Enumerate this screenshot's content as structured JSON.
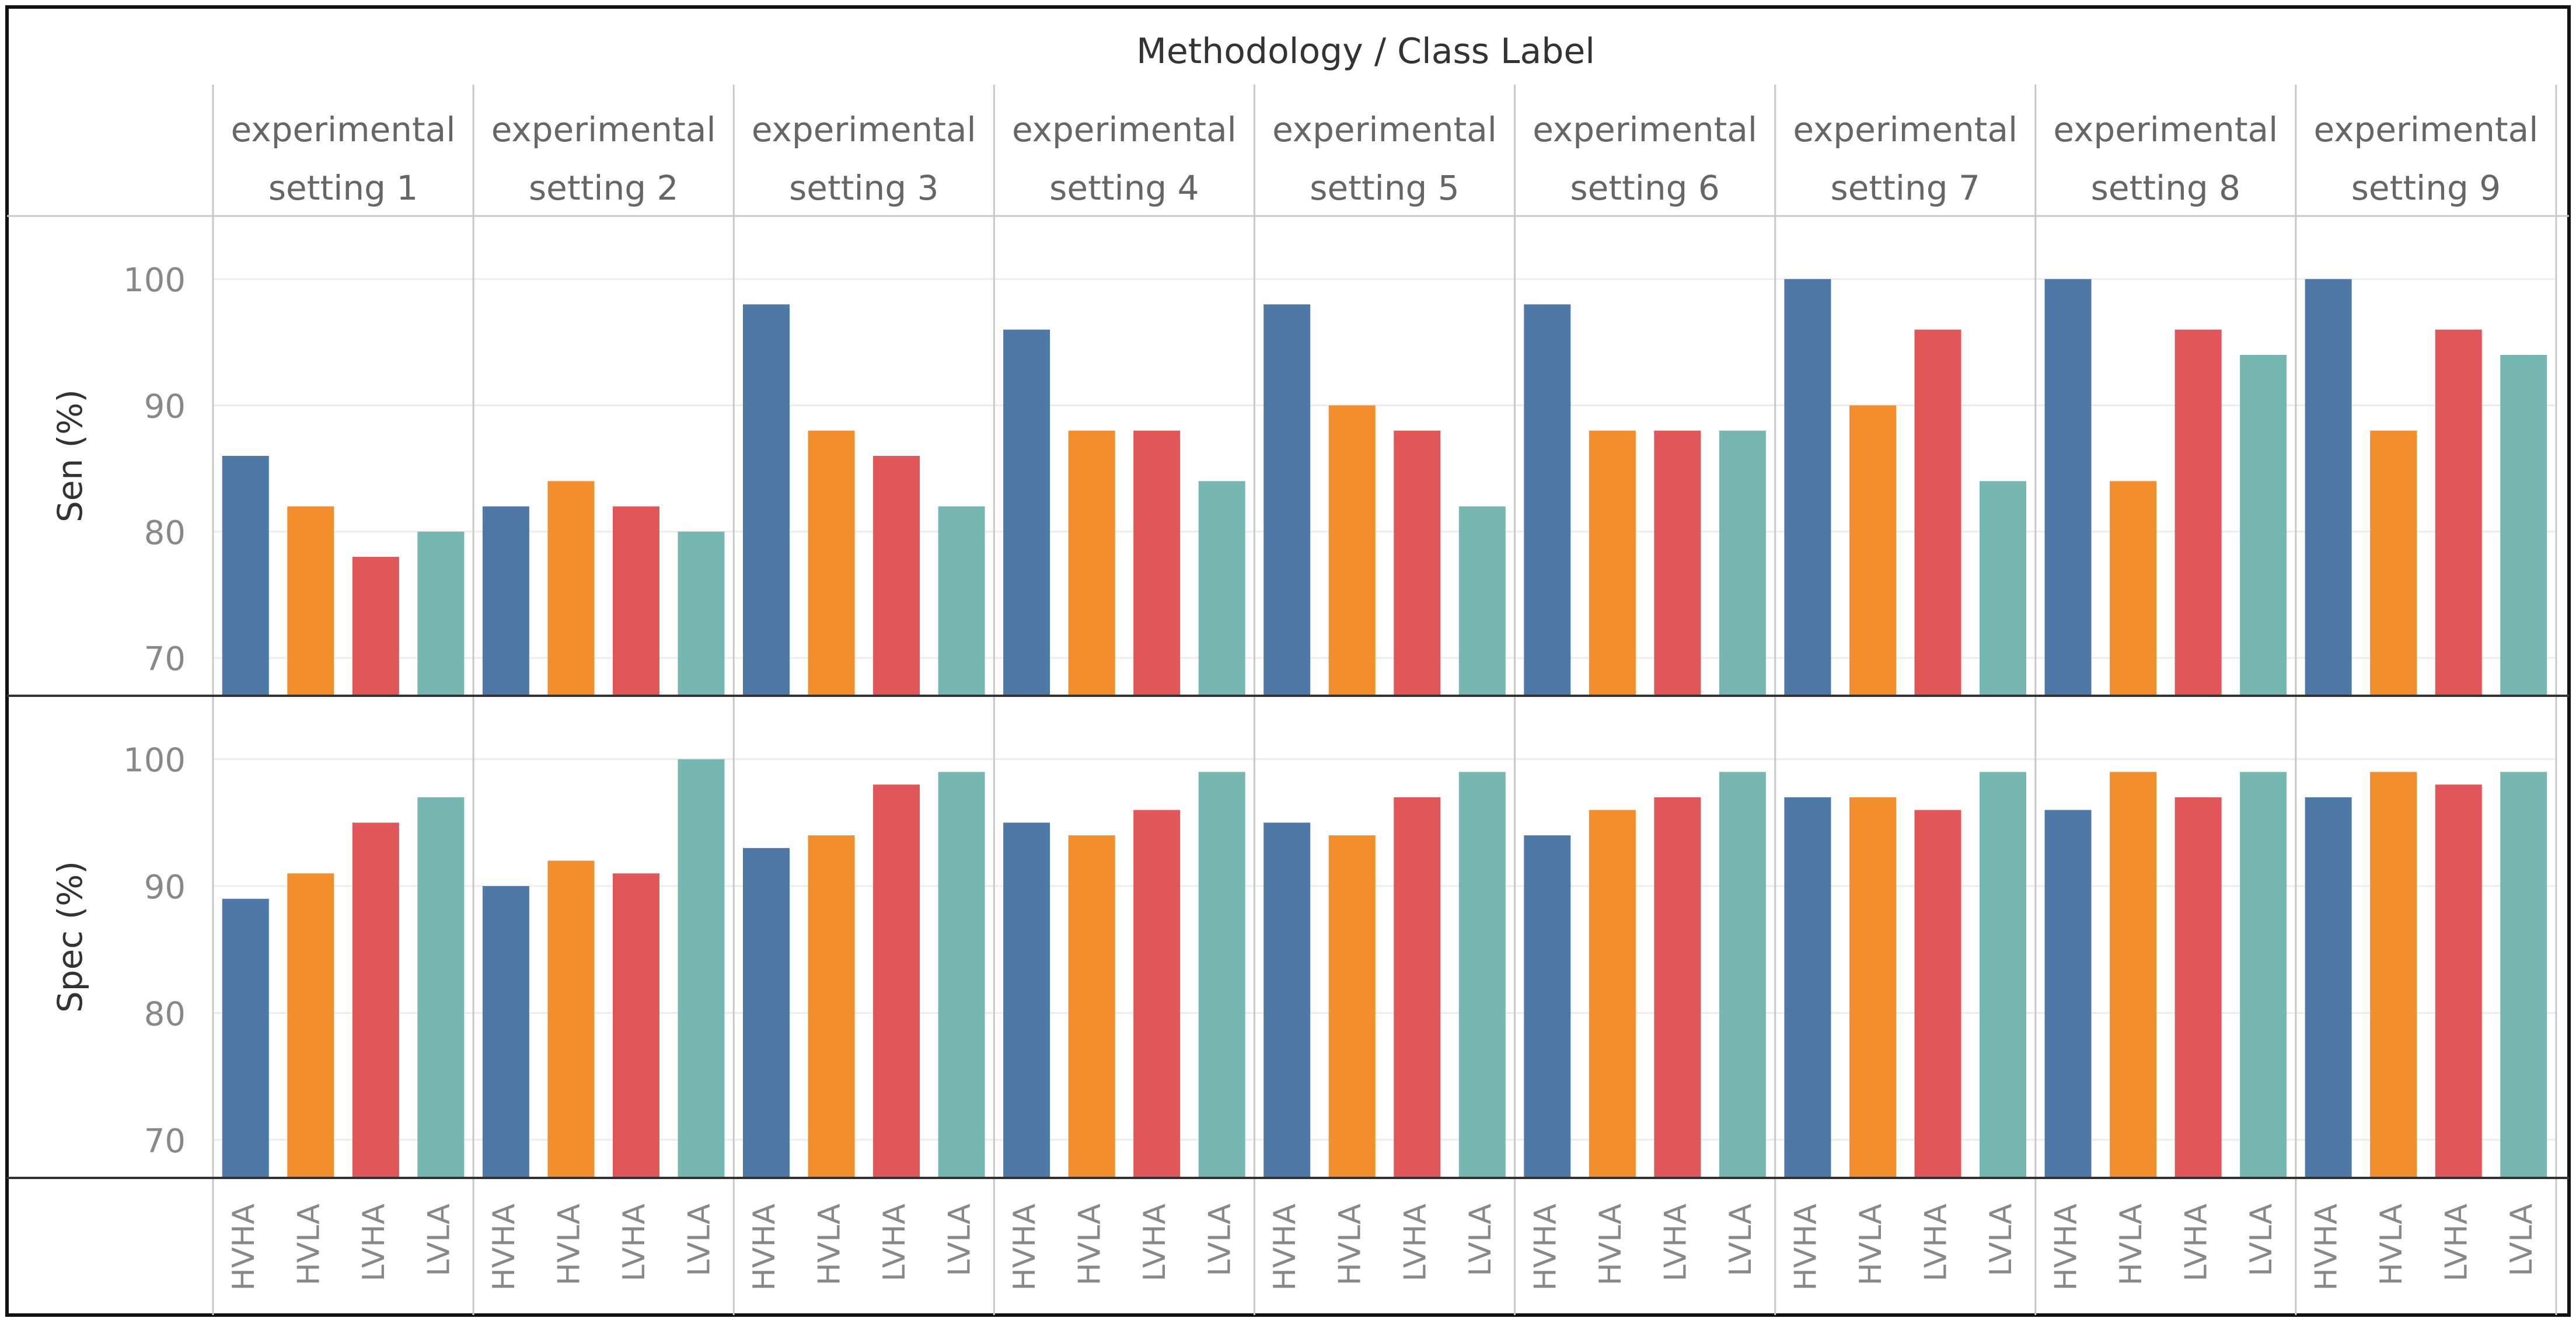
{
  "chart_data": {
    "type": "bar",
    "title": "Methodology / Class Label",
    "facets": [
      "experimental setting 1",
      "experimental setting 2",
      "experimental setting 3",
      "experimental setting 4",
      "experimental setting 5",
      "experimental setting 6",
      "experimental setting 7",
      "experimental setting 8",
      "experimental setting 9"
    ],
    "categories": [
      "HVHA",
      "HVLA",
      "LVHA",
      "LVLA"
    ],
    "colors": {
      "HVHA": "#4e79a7",
      "HVLA": "#f28e2b",
      "LVHA": "#e15759",
      "LVLA": "#76b7b2"
    },
    "panels": [
      {
        "ylabel": "Sen (%)",
        "ylim": [
          67,
          105
        ],
        "ticks": [
          70,
          80,
          90,
          100
        ],
        "values": [
          [
            86,
            82,
            78,
            80
          ],
          [
            82,
            84,
            82,
            80
          ],
          [
            98,
            88,
            86,
            82
          ],
          [
            96,
            88,
            88,
            84
          ],
          [
            98,
            90,
            88,
            82
          ],
          [
            98,
            88,
            88,
            88
          ],
          [
            100,
            90,
            96,
            84
          ],
          [
            100,
            84,
            96,
            94
          ],
          [
            100,
            88,
            96,
            94
          ]
        ]
      },
      {
        "ylabel": "Spec (%)",
        "ylim": [
          67,
          105
        ],
        "ticks": [
          70,
          80,
          90,
          100
        ],
        "values": [
          [
            89,
            91,
            95,
            97
          ],
          [
            90,
            92,
            91,
            100
          ],
          [
            93,
            94,
            98,
            99
          ],
          [
            95,
            94,
            96,
            99
          ],
          [
            95,
            94,
            97,
            99
          ],
          [
            94,
            96,
            97,
            99
          ],
          [
            97,
            97,
            96,
            99
          ],
          [
            96,
            99,
            97,
            99
          ],
          [
            97,
            99,
            98,
            99
          ]
        ]
      }
    ],
    "grid": true,
    "legend": "none"
  }
}
